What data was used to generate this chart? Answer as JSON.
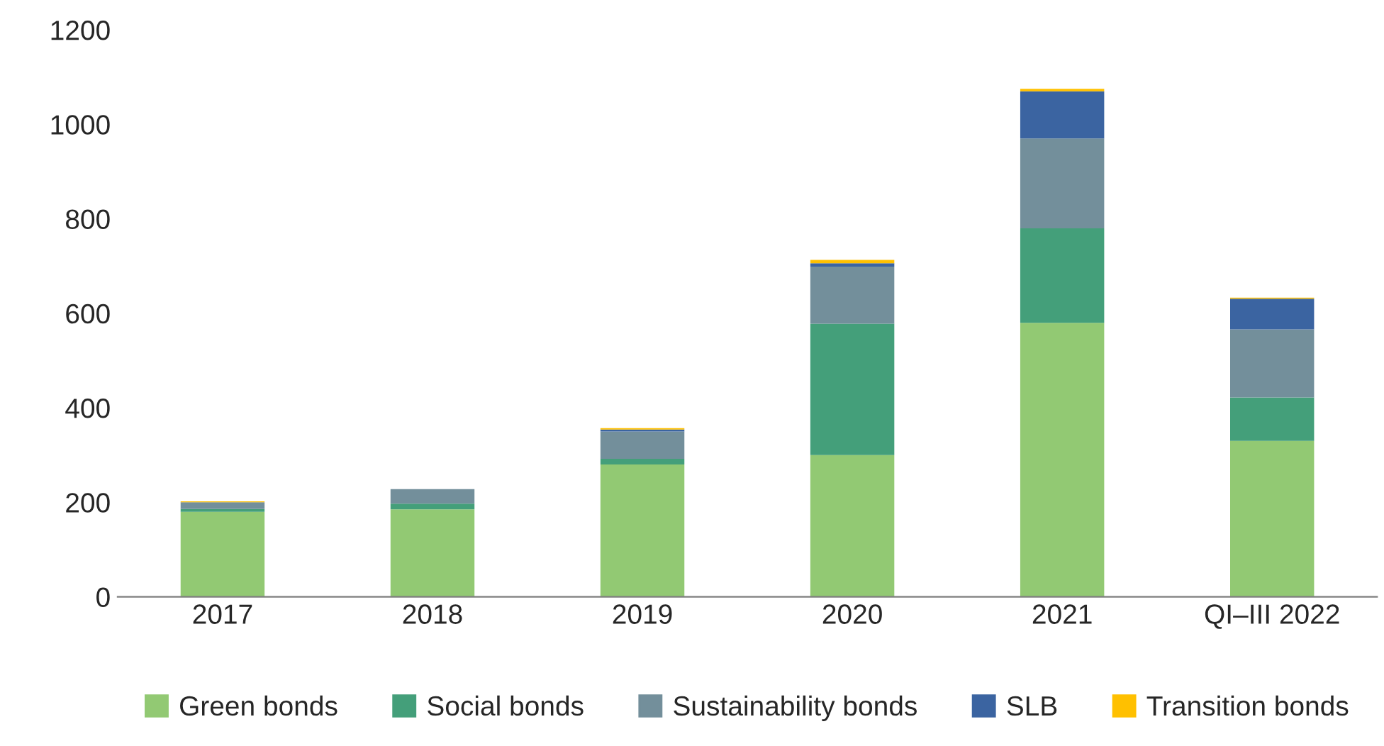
{
  "chart_data": {
    "type": "bar",
    "stacked": true,
    "categories": [
      "2017",
      "2018",
      "2019",
      "2020",
      "2021",
      "QI–III 2022"
    ],
    "series": [
      {
        "name": "Green bonds",
        "color": "#92c973",
        "values": [
          180,
          185,
          280,
          300,
          580,
          330
        ]
      },
      {
        "name": "Social bonds",
        "color": "#449f7a",
        "values": [
          6,
          12,
          12,
          278,
          200,
          92
        ]
      },
      {
        "name": "Sustainability bonds",
        "color": "#738f9b",
        "values": [
          14,
          31,
          58,
          121,
          190,
          144
        ]
      },
      {
        "name": "SLB",
        "color": "#3b64a1",
        "values": [
          0,
          0,
          4,
          7,
          100,
          65
        ]
      },
      {
        "name": "Transition bonds",
        "color": "#ffc000",
        "values": [
          2,
          0,
          3,
          7,
          5,
          2
        ]
      }
    ],
    "ylim": [
      0,
      1200
    ],
    "yticks": [
      0,
      200,
      400,
      600,
      800,
      1000,
      1200
    ],
    "grid": false,
    "legend": "bottom"
  }
}
